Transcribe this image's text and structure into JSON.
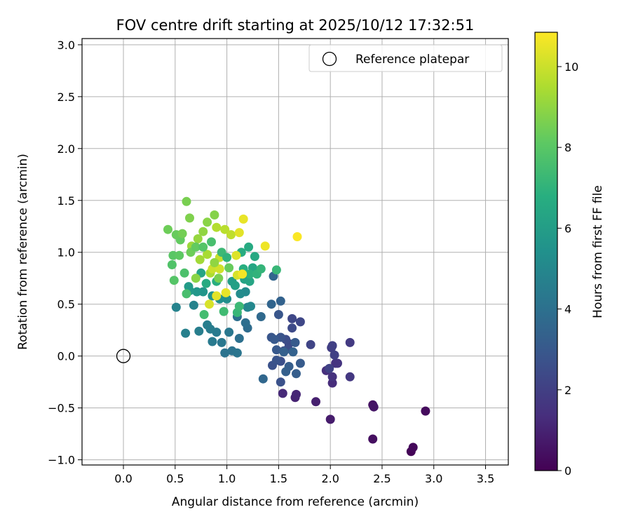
{
  "chart_data": {
    "type": "scatter",
    "title": "FOV centre drift starting at 2025/10/12 17:32:51",
    "xlabel": "Angular distance from reference (arcmin)",
    "ylabel": "Rotation from reference (arcmin)",
    "xlim": [
      -0.4,
      3.72
    ],
    "ylim": [
      -1.05,
      3.06
    ],
    "xticks": [
      0.0,
      0.5,
      1.0,
      1.5,
      2.0,
      2.5,
      3.0,
      3.5
    ],
    "xtick_labels": [
      "0.0",
      "0.5",
      "1.0",
      "1.5",
      "2.0",
      "2.5",
      "3.0",
      "3.5"
    ],
    "yticks": [
      -1.0,
      -0.5,
      0.0,
      0.5,
      1.0,
      1.5,
      2.0,
      2.5,
      3.0
    ],
    "ytick_labels": [
      "−1.0",
      "−0.5",
      "0.0",
      "0.5",
      "1.0",
      "1.5",
      "2.0",
      "2.5",
      "3.0"
    ],
    "grid": true,
    "colormap": "viridis",
    "colorbar": {
      "label": "Hours from first FF file",
      "min": 0,
      "max": 10.85,
      "ticks": [
        0,
        2,
        4,
        6,
        8,
        10
      ],
      "tick_labels": [
        "0",
        "2",
        "4",
        "6",
        "8",
        "10"
      ]
    },
    "legend": {
      "placement": "top-right",
      "entries": [
        {
          "label": "Reference platepar",
          "marker": "open-circle",
          "color": "#000000"
        }
      ]
    },
    "reference_point": {
      "x": 0.0,
      "y": 0.0
    },
    "points": [
      [
        2.78,
        -0.92,
        0.1
      ],
      [
        2.8,
        -0.88,
        0.2
      ],
      [
        2.92,
        -0.53,
        0.3
      ],
      [
        2.41,
        -0.8,
        0.4
      ],
      [
        2.41,
        -0.47,
        0.5
      ],
      [
        2.42,
        -0.49,
        0.6
      ],
      [
        2.0,
        -0.61,
        0.8
      ],
      [
        1.86,
        -0.44,
        0.9
      ],
      [
        1.66,
        -0.4,
        1.0
      ],
      [
        1.67,
        -0.37,
        1.1
      ],
      [
        1.54,
        -0.36,
        1.2
      ],
      [
        2.02,
        -0.26,
        1.3
      ],
      [
        1.96,
        -0.14,
        1.4
      ],
      [
        2.02,
        -0.2,
        1.5
      ],
      [
        2.05,
        -0.07,
        1.5
      ],
      [
        2.07,
        -0.07,
        1.6
      ],
      [
        2.19,
        -0.2,
        1.7
      ],
      [
        2.19,
        0.13,
        1.8
      ],
      [
        2.01,
        0.08,
        1.9
      ],
      [
        2.02,
        0.1,
        2.0
      ],
      [
        2.04,
        0.01,
        2.0
      ],
      [
        1.99,
        -0.12,
        2.1
      ],
      [
        1.81,
        0.11,
        2.2
      ],
      [
        1.71,
        0.33,
        2.3
      ],
      [
        1.63,
        0.36,
        2.3
      ],
      [
        1.63,
        0.27,
        2.4
      ],
      [
        1.6,
        0.12,
        2.4
      ],
      [
        1.59,
        0.07,
        2.5
      ],
      [
        1.57,
        0.16,
        2.5
      ],
      [
        1.55,
        0.05,
        2.6
      ],
      [
        1.52,
        -0.05,
        2.6
      ],
      [
        1.52,
        -0.25,
        2.7
      ],
      [
        1.44,
        -0.09,
        2.7
      ],
      [
        1.48,
        -0.04,
        2.8
      ],
      [
        1.52,
        0.18,
        2.8
      ],
      [
        1.5,
        0.4,
        2.9
      ],
      [
        1.43,
        0.18,
        2.9
      ],
      [
        1.46,
        0.16,
        3.0
      ],
      [
        1.48,
        0.06,
        3.0
      ],
      [
        1.66,
        0.13,
        3.1
      ],
      [
        1.71,
        -0.07,
        3.1
      ],
      [
        1.67,
        -0.17,
        3.2
      ],
      [
        1.6,
        -0.1,
        3.2
      ],
      [
        1.57,
        -0.15,
        3.3
      ],
      [
        1.55,
        0.04,
        3.3
      ],
      [
        1.64,
        0.04,
        3.4
      ],
      [
        1.52,
        0.53,
        3.4
      ],
      [
        1.45,
        0.77,
        3.5
      ],
      [
        1.43,
        0.5,
        3.5
      ],
      [
        1.35,
        -0.22,
        3.6
      ],
      [
        1.33,
        0.38,
        3.7
      ],
      [
        1.2,
        0.27,
        3.8
      ],
      [
        1.18,
        0.32,
        3.9
      ],
      [
        1.1,
        0.38,
        4.0
      ],
      [
        1.12,
        0.17,
        4.0
      ],
      [
        1.05,
        0.05,
        4.1
      ],
      [
        0.98,
        0.03,
        4.1
      ],
      [
        1.1,
        0.03,
        4.2
      ],
      [
        1.02,
        0.23,
        4.3
      ],
      [
        0.95,
        0.13,
        4.3
      ],
      [
        0.9,
        0.23,
        4.4
      ],
      [
        0.86,
        0.14,
        4.4
      ],
      [
        0.84,
        0.26,
        4.5
      ],
      [
        0.73,
        0.24,
        4.6
      ],
      [
        0.81,
        0.3,
        4.6
      ],
      [
        0.6,
        0.22,
        4.7
      ],
      [
        0.68,
        0.49,
        4.8
      ],
      [
        0.51,
        0.47,
        4.8
      ],
      [
        1.2,
        0.47,
        4.9
      ],
      [
        1.23,
        0.48,
        5.0
      ],
      [
        1.18,
        0.62,
        5.1
      ],
      [
        1.13,
        0.6,
        5.2
      ],
      [
        1.0,
        0.55,
        5.3
      ],
      [
        0.93,
        0.55,
        5.4
      ],
      [
        0.86,
        0.58,
        5.5
      ],
      [
        0.77,
        0.62,
        5.6
      ],
      [
        0.71,
        0.62,
        5.7
      ],
      [
        0.64,
        0.63,
        5.8
      ],
      [
        0.63,
        0.67,
        5.9
      ],
      [
        1.05,
        0.72,
        6.0
      ],
      [
        1.08,
        0.68,
        6.1
      ],
      [
        1.17,
        0.74,
        6.2
      ],
      [
        1.22,
        0.72,
        6.3
      ],
      [
        1.25,
        0.85,
        6.4
      ],
      [
        1.27,
        0.96,
        6.5
      ],
      [
        1.21,
        1.05,
        6.6
      ],
      [
        1.14,
        1.0,
        6.7
      ],
      [
        1.16,
        0.84,
        6.8
      ],
      [
        1.22,
        0.79,
        6.9
      ],
      [
        1.29,
        0.79,
        7.0
      ],
      [
        1.33,
        0.84,
        7.1
      ],
      [
        1.48,
        0.83,
        7.2
      ],
      [
        1.1,
        0.42,
        7.2
      ],
      [
        1.12,
        0.48,
        7.3
      ],
      [
        0.97,
        0.43,
        7.4
      ],
      [
        0.78,
        0.4,
        7.5
      ],
      [
        0.61,
        0.6,
        7.6
      ],
      [
        0.59,
        0.8,
        7.7
      ],
      [
        0.47,
        0.88,
        7.8
      ],
      [
        0.49,
        0.73,
        7.9
      ],
      [
        0.48,
        0.97,
        8.0
      ],
      [
        0.54,
        0.97,
        8.1
      ],
      [
        0.55,
        1.12,
        8.2
      ],
      [
        0.51,
        1.17,
        8.3
      ],
      [
        0.43,
        1.22,
        8.4
      ],
      [
        0.57,
        1.18,
        8.5
      ],
      [
        0.61,
        1.49,
        8.6
      ],
      [
        0.64,
        1.33,
        8.7
      ],
      [
        0.88,
        1.36,
        8.8
      ],
      [
        0.81,
        1.29,
        8.9
      ],
      [
        0.77,
        1.2,
        9.0
      ],
      [
        0.72,
        1.13,
        9.1
      ],
      [
        0.66,
        1.06,
        9.2
      ],
      [
        0.74,
        0.93,
        9.3
      ],
      [
        0.81,
        0.98,
        9.4
      ],
      [
        0.84,
        0.8,
        9.5
      ],
      [
        0.9,
        1.24,
        9.6
      ],
      [
        0.98,
        1.22,
        9.7
      ],
      [
        1.04,
        1.17,
        9.8
      ],
      [
        0.93,
        0.95,
        9.9
      ],
      [
        0.86,
        0.84,
        10.0
      ],
      [
        0.93,
        0.84,
        10.1
      ],
      [
        1.1,
        0.78,
        10.2
      ],
      [
        1.09,
        0.97,
        10.3
      ],
      [
        1.12,
        1.19,
        10.4
      ],
      [
        1.16,
        1.32,
        10.5
      ],
      [
        1.37,
        1.06,
        10.6
      ],
      [
        1.68,
        1.15,
        10.8
      ],
      [
        0.99,
        0.61,
        10.5
      ],
      [
        1.15,
        0.79,
        10.7
      ],
      [
        0.9,
        0.58,
        10.4
      ],
      [
        0.83,
        0.5,
        10.2
      ],
      [
        0.65,
        1.0,
        8.4
      ],
      [
        0.7,
        1.05,
        8.2
      ],
      [
        0.77,
        1.05,
        7.9
      ],
      [
        0.85,
        1.1,
        7.6
      ],
      [
        0.95,
        1.0,
        7.3
      ],
      [
        1.0,
        0.95,
        7.0
      ],
      [
        0.9,
        0.72,
        6.8
      ],
      [
        0.8,
        0.7,
        6.6
      ],
      [
        0.75,
        0.8,
        6.3
      ],
      [
        0.88,
        0.9,
        9.0
      ],
      [
        0.92,
        0.75,
        8.6
      ],
      [
        0.7,
        0.75,
        8.9
      ],
      [
        1.02,
        0.85,
        8.3
      ]
    ]
  }
}
